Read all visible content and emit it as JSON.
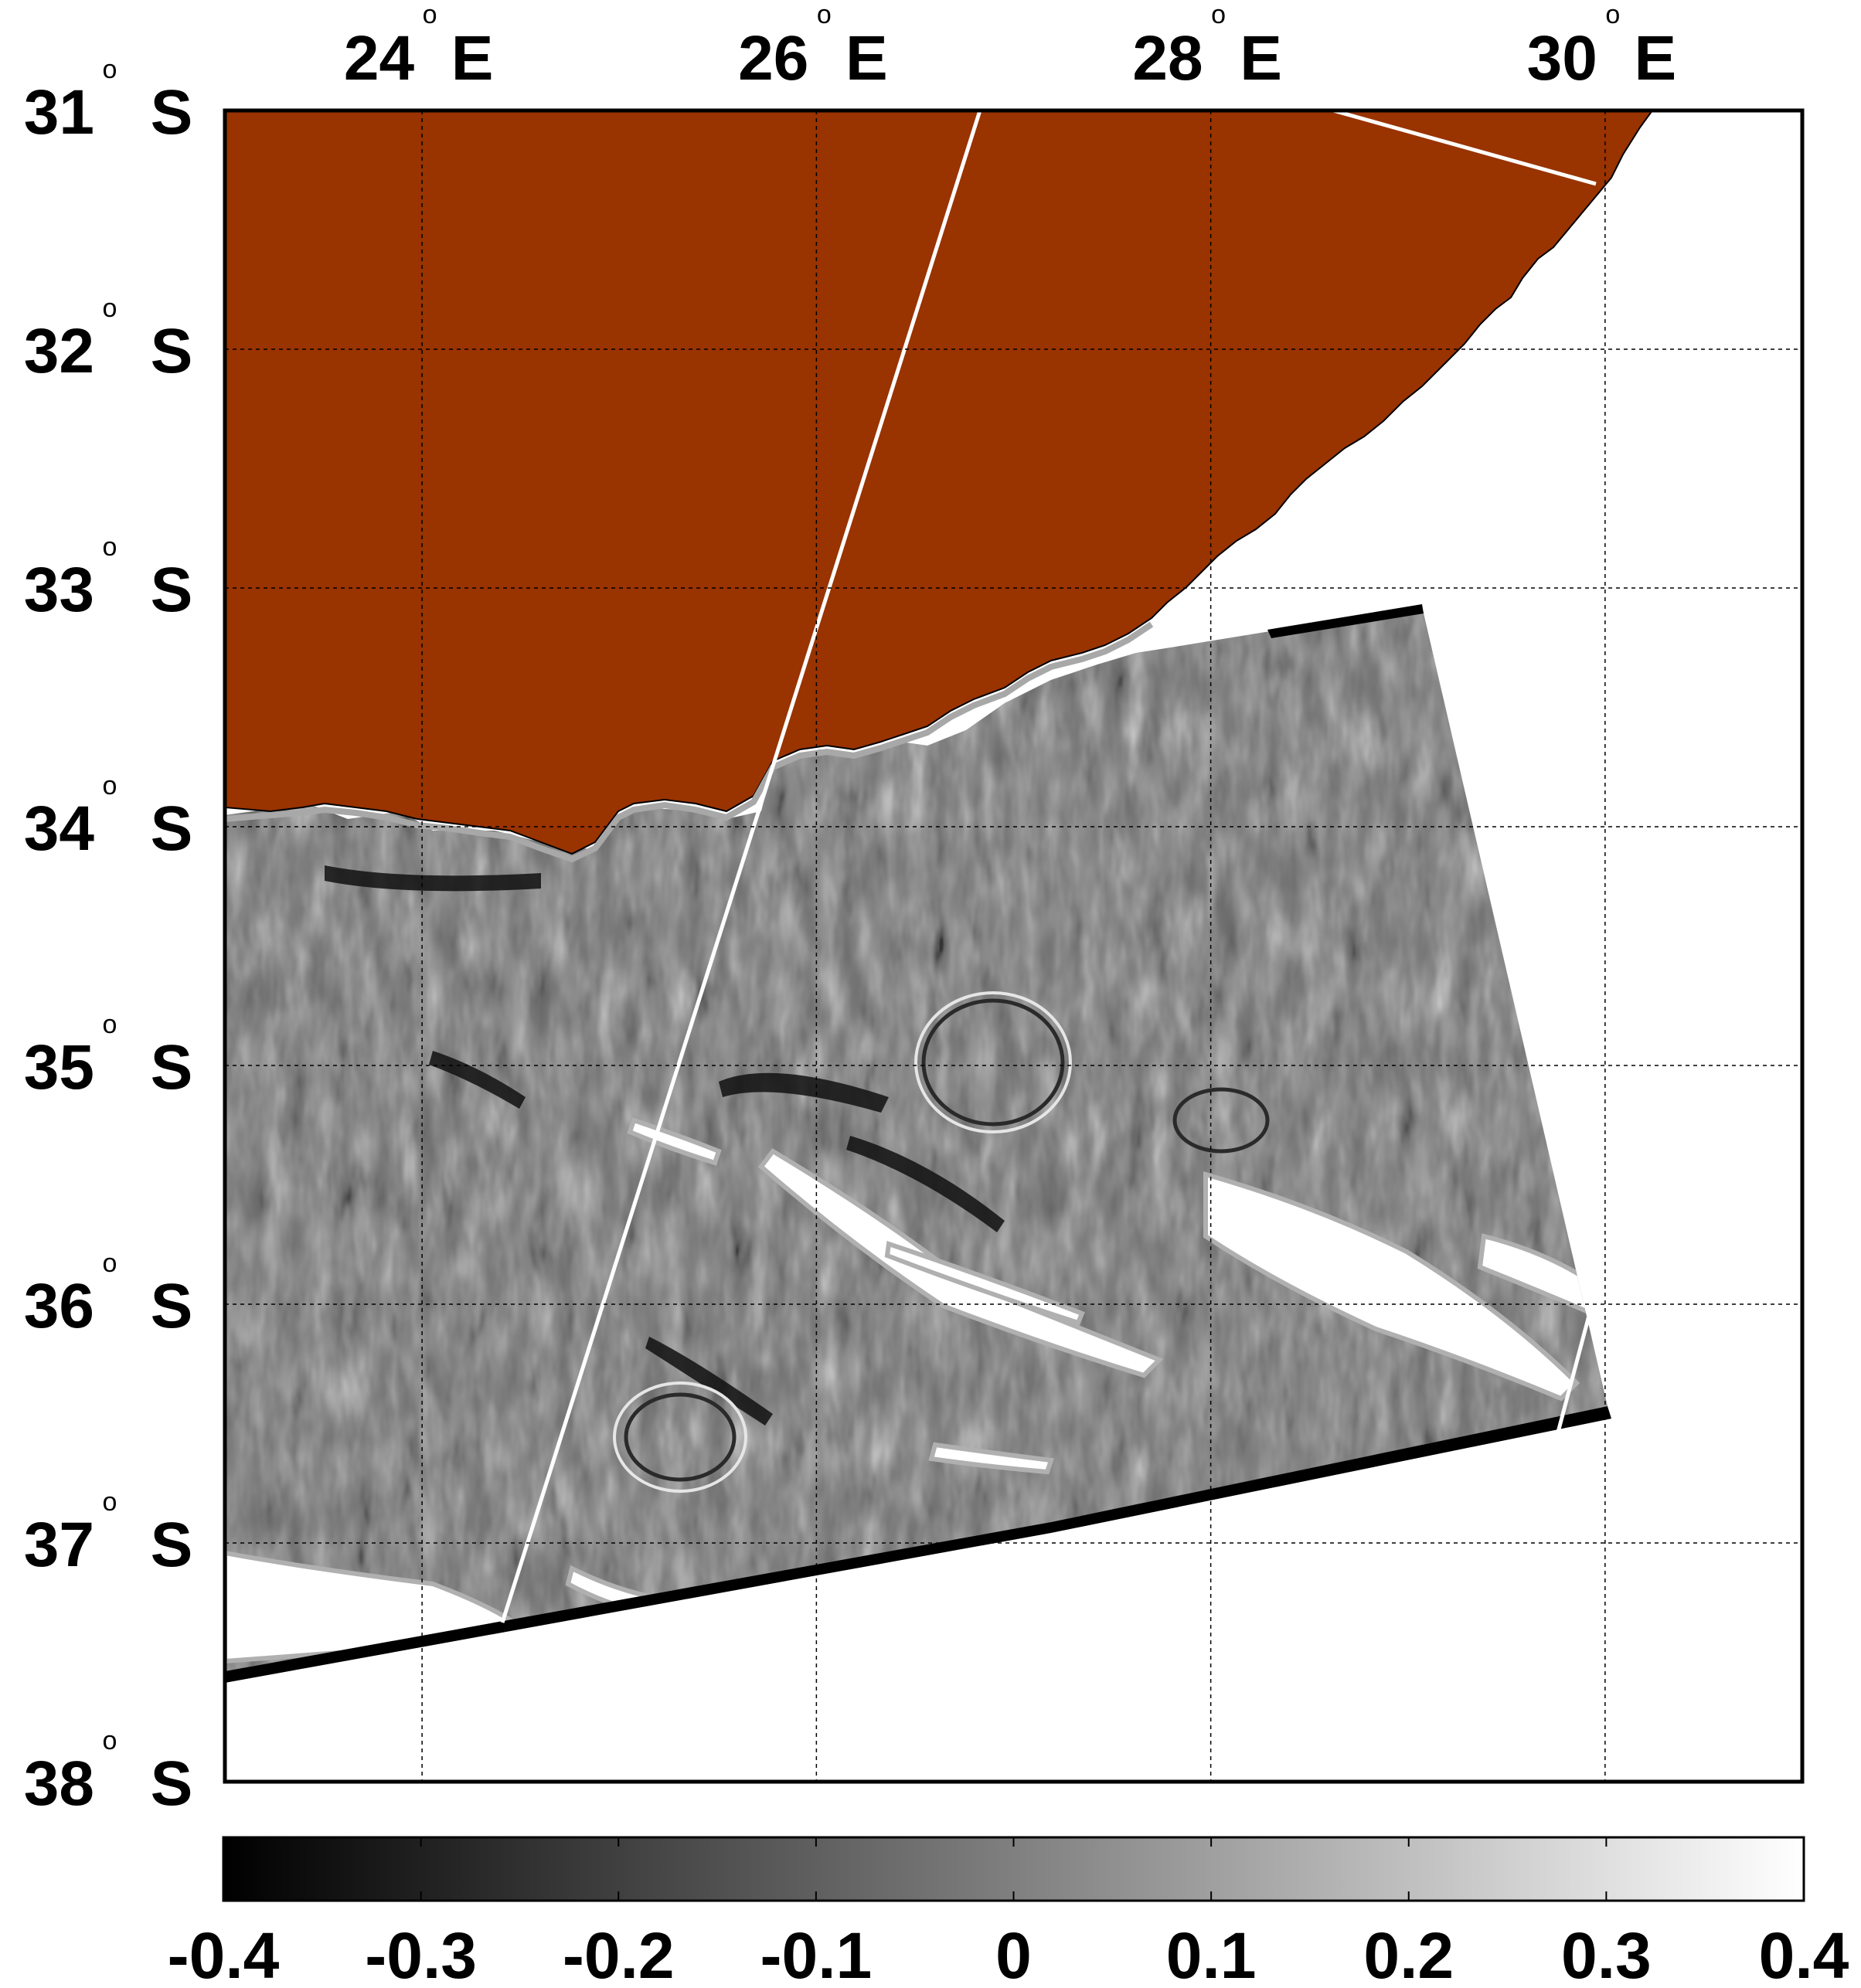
{
  "map": {
    "lon_ticks": [
      {
        "value": 24,
        "number": "24",
        "deg": "o",
        "hemi": "E"
      },
      {
        "value": 26,
        "number": "26",
        "deg": "o",
        "hemi": "E"
      },
      {
        "value": 28,
        "number": "28",
        "deg": "o",
        "hemi": "E"
      },
      {
        "value": 30,
        "number": "30",
        "deg": "o",
        "hemi": "E"
      }
    ],
    "lat_ticks": [
      {
        "value": -31,
        "number": "31",
        "deg": "o",
        "hemi": "S"
      },
      {
        "value": -32,
        "number": "32",
        "deg": "o",
        "hemi": "S"
      },
      {
        "value": -33,
        "number": "33",
        "deg": "o",
        "hemi": "S"
      },
      {
        "value": -34,
        "number": "34",
        "deg": "o",
        "hemi": "S"
      },
      {
        "value": -35,
        "number": "35",
        "deg": "o",
        "hemi": "S"
      },
      {
        "value": -36,
        "number": "36",
        "deg": "o",
        "hemi": "S"
      },
      {
        "value": -37,
        "number": "37",
        "deg": "o",
        "hemi": "S"
      },
      {
        "value": -38,
        "number": "38",
        "deg": "o",
        "hemi": "S"
      }
    ],
    "lon_range": [
      23.0,
      31.0
    ],
    "lat_range": [
      -38.0,
      -31.0
    ],
    "land_color": "#993300",
    "grid": "dotted",
    "colorbar": {
      "min": -0.4,
      "max": 0.4,
      "colormap": "gray",
      "tick_labels": [
        "-0.4",
        "-0.3",
        "-0.2",
        "-0.1",
        "0",
        "0.1",
        "0.2",
        "0.3",
        "0.4"
      ]
    }
  }
}
